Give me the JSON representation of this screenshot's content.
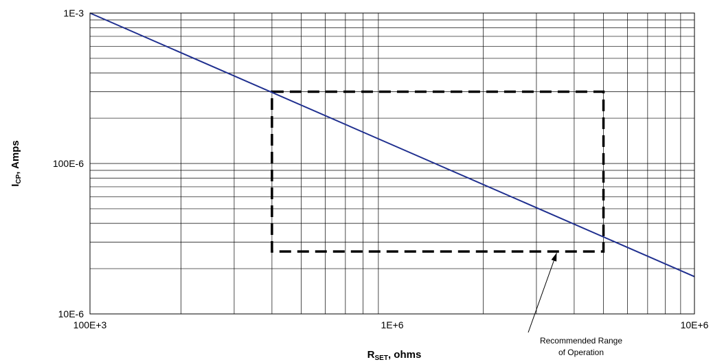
{
  "chart_data": {
    "type": "line",
    "title": "",
    "scale": {
      "x": "log",
      "y": "log"
    },
    "grid": true,
    "xlim": [
      100000,
      10000000
    ],
    "ylim": [
      1e-05,
      0.001
    ],
    "x_ticks": [
      {
        "value": 100000,
        "label": "100E+3"
      },
      {
        "value": 1000000,
        "label": "1E+6"
      },
      {
        "value": 10000000,
        "label": "10E+6"
      }
    ],
    "y_ticks": [
      {
        "value": 0.001,
        "label": "1E-3"
      },
      {
        "value": 0.0001,
        "label": "100E-6"
      },
      {
        "value": 1e-05,
        "label": "10E-6"
      }
    ],
    "xlabel": {
      "main": "R",
      "sub": "SET",
      "rest": ", ohms"
    },
    "ylabel": {
      "main": "I",
      "sub": "CP",
      "rest": ", Amps"
    },
    "series": [
      {
        "name": "",
        "color": "#1f2f8f",
        "x": [
          100000,
          1000000,
          10000000
        ],
        "y": [
          0.001,
          0.000133,
          1.77e-05
        ]
      }
    ],
    "region": {
      "x": [
        400000,
        5000000
      ],
      "y": [
        2.6e-05,
        0.0003
      ],
      "style": "dashed",
      "color": "#000000"
    },
    "annotation": {
      "lines": [
        "Recommended Range",
        "of Operation"
      ],
      "target": {
        "x": 3500000,
        "y": 2.6e-05
      }
    }
  }
}
